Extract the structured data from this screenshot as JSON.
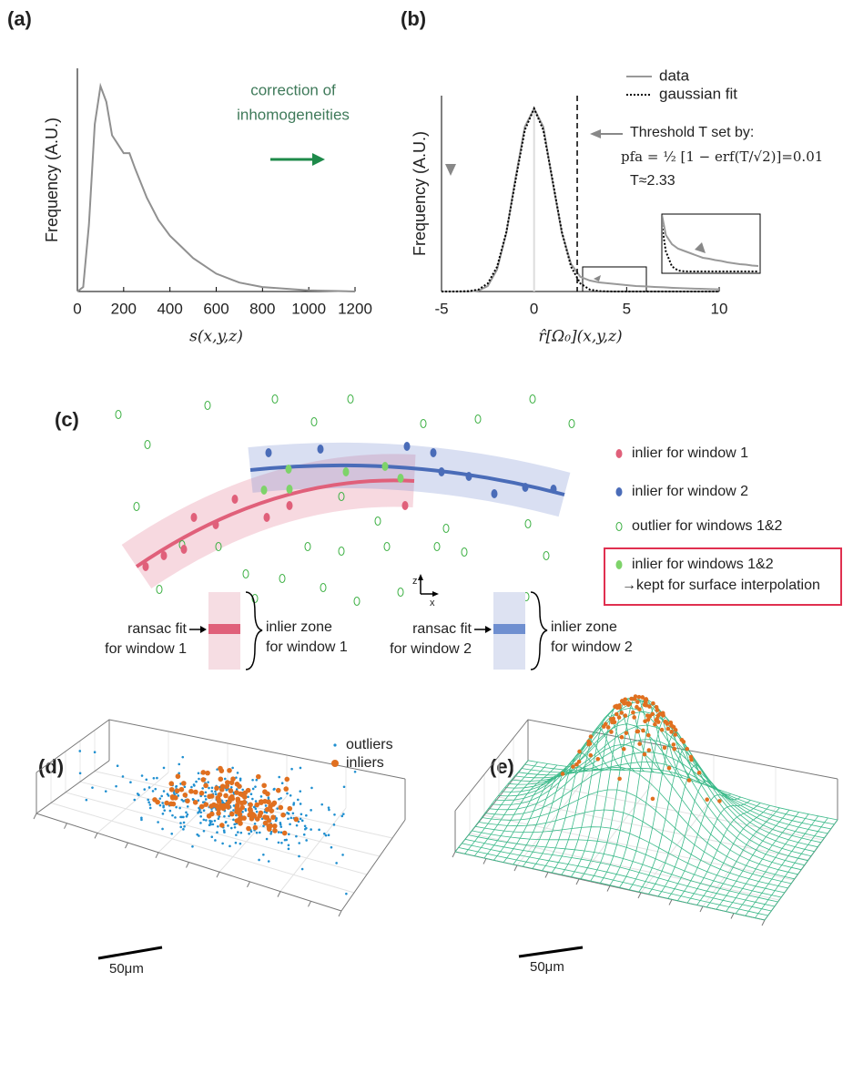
{
  "panels": [
    "(a)",
    "(b)",
    "(c)",
    "(d)",
    "(e)"
  ],
  "chart_data": [
    {
      "type": "line",
      "ylabel": "Frequency (A.U.)",
      "xlabel": "s(x,y,z)",
      "x": [
        0,
        25,
        50,
        75,
        100,
        125,
        150,
        200,
        225,
        250,
        300,
        350,
        400,
        450,
        500,
        600,
        700,
        800,
        1000,
        1200
      ],
      "values": [
        0,
        0.02,
        0.3,
        0.75,
        0.92,
        0.85,
        0.7,
        0.62,
        0.62,
        0.55,
        0.42,
        0.32,
        0.25,
        0.2,
        0.15,
        0.08,
        0.04,
        0.02,
        0.005,
        0
      ],
      "color": "#909090",
      "xlim": [
        0,
        1200
      ],
      "xticks": [
        0,
        200,
        400,
        600,
        800,
        1000,
        1200
      ],
      "ylim": [
        0,
        1
      ],
      "annotation": [
        "correction of",
        "inhomogeneities"
      ]
    },
    {
      "type": "line",
      "ylabel": "Frequency (A.U.)",
      "xlabel": "r̂[Ω₀](x,y,z)",
      "x": [
        -5,
        -4.5,
        -4,
        -3.5,
        -3,
        -2.5,
        -2,
        -1.5,
        -1,
        -0.5,
        0,
        0.5,
        1,
        1.5,
        2,
        2.5,
        3,
        3.5,
        4,
        4.5,
        5,
        5.5,
        6,
        6.5,
        7,
        7.5,
        8,
        8.5,
        9,
        9.5,
        10
      ],
      "series": [
        {
          "name": "data",
          "color": "#999999",
          "dashed": false,
          "values": [
            0,
            0,
            0,
            0,
            0.005,
            0.03,
            0.12,
            0.32,
            0.62,
            0.9,
            1,
            0.9,
            0.6,
            0.32,
            0.15,
            0.08,
            0.06,
            0.05,
            0.045,
            0.04,
            0.035,
            0.03,
            0.028,
            0.025,
            0.023,
            0.02,
            0.018,
            0.016,
            0.015,
            0.013,
            0.012
          ]
        },
        {
          "name": "gaussian fit",
          "color": "#000000",
          "dashed": true,
          "values": [
            0,
            0,
            0.0003,
            0.002,
            0.011,
            0.044,
            0.135,
            0.325,
            0.607,
            0.882,
            1,
            0.882,
            0.607,
            0.325,
            0.135,
            0.044,
            0.011,
            0.002,
            0.0003,
            0,
            0,
            0,
            0,
            0,
            0,
            0,
            0,
            0,
            0,
            0,
            0
          ]
        }
      ],
      "xlim": [
        -5,
        10
      ],
      "xticks": [
        -5,
        0,
        5,
        10
      ],
      "ylim": [
        0,
        1.07
      ],
      "threshold": 2.33,
      "annotation": [
        "Threshold T  set by:",
        "pfa = ½ [1 − erf(T/√2)]=0.01",
        "T≈2.33"
      ]
    }
  ],
  "diagram_c": {
    "legend": [
      "inlier for window 1",
      "inlier for window 2",
      "outlier for windows 1&2",
      "inlier for windows 1&2",
      "→kept for surface interpolation"
    ],
    "axes": [
      "z",
      "x"
    ],
    "window_1": {
      "fit": [
        "ransac fit",
        "for window 1"
      ],
      "zone": [
        "inlier zone",
        "for window 1"
      ]
    },
    "window_2": {
      "fit": [
        "ransac fit",
        "for window 2"
      ],
      "zone": [
        "inlier zone",
        "for window 2"
      ]
    }
  },
  "panel_d": {
    "legend": [
      "outliers",
      "inliers"
    ],
    "scale_bar": "50μm"
  },
  "panel_e": {
    "scale_bar": "50μm"
  }
}
